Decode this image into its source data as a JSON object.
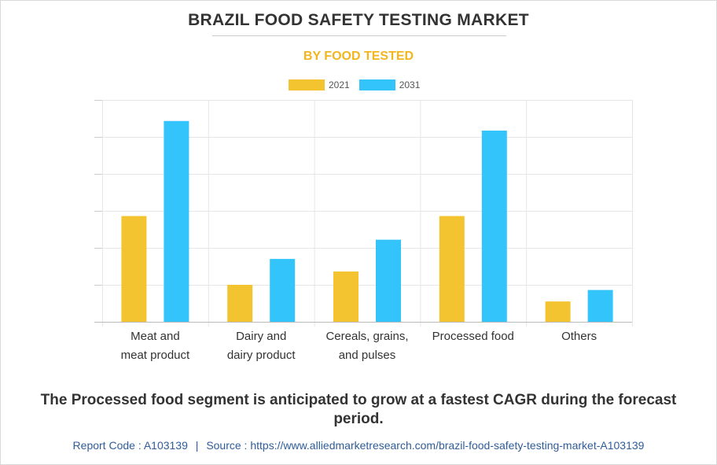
{
  "header": {
    "title": "BRAZIL FOOD SAFETY TESTING MARKET",
    "subtitle": "BY FOOD TESTED"
  },
  "colors": {
    "series_2021": "#f4c430",
    "series_2031": "#33c4fc",
    "title": "#333333",
    "subtitle": "#f2b51d",
    "source": "#2f5c9a"
  },
  "chart_data": {
    "type": "bar",
    "title": "BRAZIL FOOD SAFETY TESTING MARKET",
    "subtitle": "BY FOOD TESTED",
    "xlabel": "",
    "ylabel": "",
    "ylim": [
      0,
      6
    ],
    "grid": true,
    "legend_position": "top-center",
    "categories": [
      [
        "Meat and",
        "meat product"
      ],
      [
        "Dairy and",
        "dairy product"
      ],
      [
        "Cereals, grains,",
        "and pulses"
      ],
      [
        "Processed food"
      ],
      [
        "Others"
      ]
    ],
    "series": [
      {
        "name": "2021",
        "values": [
          2.86,
          1.0,
          1.36,
          2.86,
          0.55
        ]
      },
      {
        "name": "2031",
        "values": [
          5.43,
          1.7,
          2.22,
          5.17,
          0.86
        ]
      }
    ]
  },
  "footnote": "The Processed food segment is anticipated to grow at a fastest CAGR during the forecast period.",
  "source": {
    "report_code": "Report Code : A103139",
    "separator": "|",
    "source_text": "Source : https://www.alliedmarketresearch.com/brazil-food-safety-testing-market-A103139"
  }
}
